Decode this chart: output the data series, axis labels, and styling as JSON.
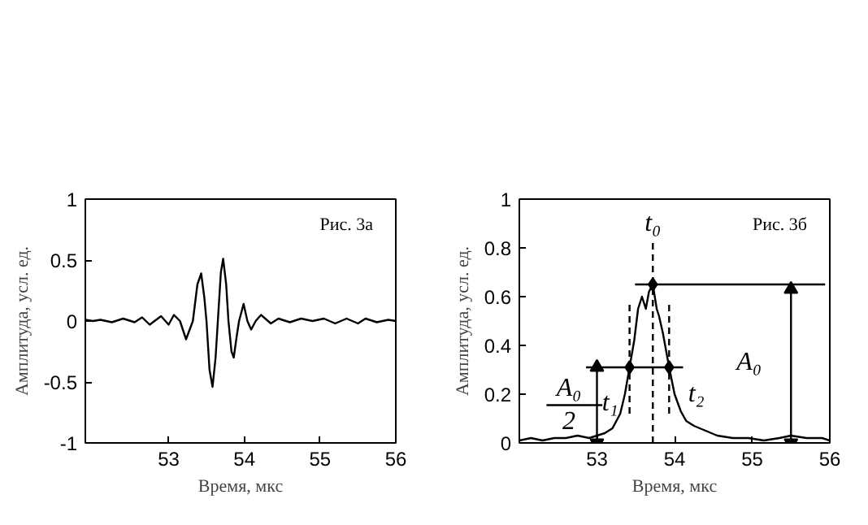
{
  "chart_data": [
    {
      "type": "line",
      "xlabel": "Время, мкс",
      "ylabel": "Амплитуда, усл. ед.",
      "annotations": [
        "Рис. 3а"
      ],
      "xlim": [
        51.9,
        56
      ],
      "xticks": [
        53,
        54,
        55,
        56
      ],
      "ylim": [
        -1,
        1
      ],
      "yticks": [
        -1,
        -0.5,
        0,
        0.5,
        1
      ],
      "grid": false,
      "series": [
        {
          "color": "#000000",
          "x": [
            51.9,
            52.0,
            52.1,
            52.25,
            52.4,
            52.55,
            52.65,
            52.75,
            52.9,
            53.0,
            53.07,
            53.15,
            53.23,
            53.32,
            53.38,
            53.43,
            53.47,
            53.5,
            53.54,
            53.58,
            53.62,
            53.65,
            53.69,
            53.72,
            53.76,
            53.79,
            53.83,
            53.86,
            53.9,
            53.93,
            53.99,
            54.04,
            54.09,
            54.15,
            54.22,
            54.35,
            54.45,
            54.6,
            54.75,
            54.9,
            55.05,
            55.2,
            55.35,
            55.5,
            55.6,
            55.75,
            55.9,
            56.0
          ],
          "values": [
            0.01,
            0.0,
            0.01,
            -0.01,
            0.02,
            -0.01,
            0.03,
            -0.03,
            0.04,
            -0.03,
            0.05,
            0.0,
            -0.15,
            0.0,
            0.3,
            0.39,
            0.2,
            0.0,
            -0.4,
            -0.54,
            -0.3,
            0.0,
            0.4,
            0.51,
            0.3,
            0.0,
            -0.25,
            -0.3,
            -0.12,
            0.0,
            0.14,
            0.0,
            -0.07,
            0.0,
            0.05,
            -0.02,
            0.02,
            -0.01,
            0.02,
            0.0,
            0.02,
            -0.02,
            0.02,
            -0.02,
            0.02,
            -0.01,
            0.01,
            0.0
          ]
        }
      ]
    },
    {
      "type": "line",
      "xlabel": "Время, мкс",
      "ylabel": "Амплитуда, усл. ед.",
      "annotations": [
        "Рис. 3б",
        "t₀",
        "t₁",
        "t₂",
        "A₀",
        "A₀",
        "2"
      ],
      "xlim": [
        52,
        56
      ],
      "xticks": [
        53,
        54,
        55,
        56
      ],
      "ylim": [
        0,
        1
      ],
      "yticks": [
        0,
        0.2,
        0.4,
        0.6,
        0.8,
        1
      ],
      "grid": false,
      "series": [
        {
          "color": "#000000",
          "x": [
            52.0,
            52.15,
            52.3,
            52.45,
            52.6,
            52.75,
            52.9,
            53.0,
            53.1,
            53.2,
            53.3,
            53.36,
            53.42,
            53.48,
            53.53,
            53.58,
            53.63,
            53.67,
            53.72,
            53.77,
            53.8,
            53.85,
            53.93,
            54.0,
            54.08,
            54.15,
            54.25,
            54.4,
            54.55,
            54.75,
            54.95,
            55.15,
            55.35,
            55.5,
            55.7,
            55.9,
            56.0
          ],
          "values": [
            0.01,
            0.02,
            0.01,
            0.02,
            0.02,
            0.03,
            0.02,
            0.03,
            0.04,
            0.06,
            0.12,
            0.2,
            0.31,
            0.42,
            0.55,
            0.6,
            0.55,
            0.62,
            0.65,
            0.55,
            0.52,
            0.45,
            0.31,
            0.2,
            0.13,
            0.09,
            0.07,
            0.05,
            0.03,
            0.02,
            0.02,
            0.01,
            0.02,
            0.03,
            0.02,
            0.02,
            0.01
          ]
        },
        {
          "type": "line",
          "color": "#000000",
          "x": [
            53.49,
            55.94
          ],
          "values": [
            0.65,
            0.65
          ]
        },
        {
          "type": "line",
          "color": "#000000",
          "x": [
            52.86,
            54.11
          ],
          "values": [
            0.31,
            0.31
          ]
        },
        {
          "type": "line",
          "color": "#000000",
          "x": [
            52.35,
            53.07
          ],
          "values": [
            0.155,
            0.155
          ]
        },
        {
          "type": "line",
          "color": "#000000",
          "marker": "triangle",
          "x": [
            55.5,
            55.5
          ],
          "values": [
            0.0,
            0.63
          ]
        },
        {
          "type": "line",
          "color": "#000000",
          "marker": "triangle",
          "x": [
            53.0,
            53.0
          ],
          "values": [
            0.0,
            0.31
          ]
        },
        {
          "type": "line",
          "color": "#000000",
          "line_style": "dashed",
          "x": [
            53.72,
            53.72
          ],
          "values": [
            0.0,
            0.84
          ]
        },
        {
          "type": "line",
          "color": "#000000",
          "line_style": "dashed",
          "x": [
            53.42,
            53.42
          ],
          "values": [
            0.12,
            0.58
          ]
        },
        {
          "type": "line",
          "color": "#000000",
          "line_style": "dashed",
          "x": [
            53.93,
            53.93
          ],
          "values": [
            0.12,
            0.58
          ]
        },
        {
          "type": "scatter",
          "color": "#000000",
          "marker": "diamond",
          "x": [
            53.42,
            53.93,
            53.72
          ],
          "values": [
            0.31,
            0.31,
            0.65
          ]
        }
      ]
    }
  ]
}
